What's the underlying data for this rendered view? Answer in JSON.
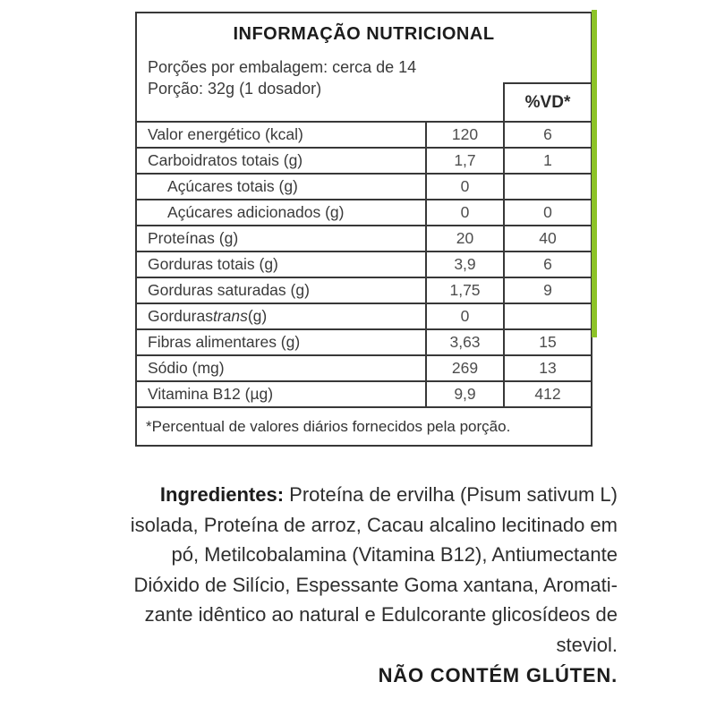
{
  "label": {
    "title": "INFORMAÇÃO NUTRICIONAL",
    "servings_per_package": "Porções por embalagem: cerca de 14",
    "serving_size": "Porção: 32g (1 dosador)",
    "vd_header": "%VD*",
    "rows": [
      {
        "label": "Valor energético (kcal)",
        "value": "120",
        "vd": "6"
      },
      {
        "label": "Carboidratos totais (g)",
        "value": "1,7",
        "vd": "1"
      },
      {
        "label": "Açúcares totais (g)",
        "value": "0",
        "vd": ""
      },
      {
        "label": "Açúcares adicionados (g)",
        "value": "0",
        "vd": "0"
      },
      {
        "label": "Proteínas (g)",
        "value": "20",
        "vd": "40"
      },
      {
        "label": "Gorduras totais (g)",
        "value": "3,9",
        "vd": "6"
      },
      {
        "label": "Gorduras saturadas (g)",
        "value": "1,75",
        "vd": "9"
      },
      {
        "label_prefix": "Gorduras ",
        "label_italic": "trans",
        "label_suffix": " (g)",
        "value": "0",
        "vd": ""
      },
      {
        "label": "Fibras alimentares (g)",
        "value": "3,63",
        "vd": "15"
      },
      {
        "label": "Sódio (mg)",
        "value": "269",
        "vd": "13"
      },
      {
        "label": "Vitamina B12 (µg)",
        "value": "9,9",
        "vd": "412"
      }
    ],
    "footnote": "*Percentual de valores diários fornecidos pela porção."
  },
  "ingredients": {
    "lead": "Ingredientes:",
    "line1_rest": " Proteína de ervilha (Pisum sativum L)",
    "lines": [
      "isolada, Proteína de arroz, Cacau alcalino lecitinado em",
      "pó, Metilcobalamina (Vitamina B12), Antiumectante",
      "Dióxido de Silício, Espessante Goma xantana, Aromati-",
      "zante idêntico ao natural e Edulcorante glicosídeos de",
      "steviol."
    ],
    "gluten_statement": "NÃO CONTÉM GLÚTEN."
  },
  "colors": {
    "accent_stripe": "#8dc327",
    "border": "#383838"
  }
}
